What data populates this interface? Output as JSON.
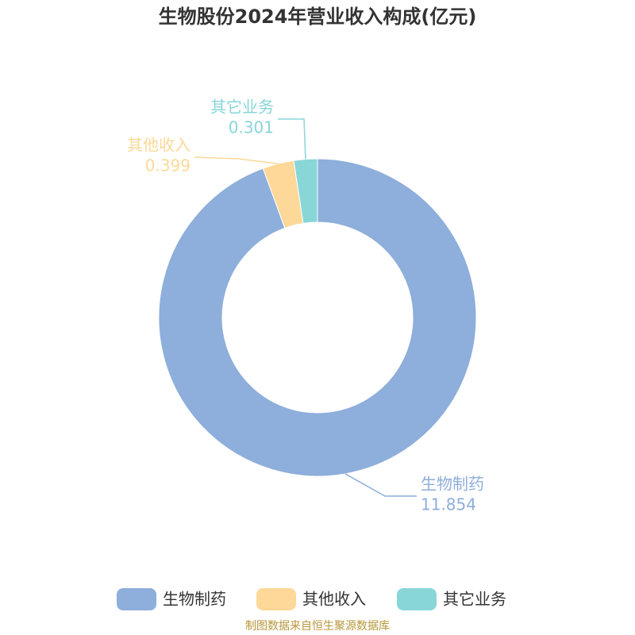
{
  "chart_data": {
    "type": "donut",
    "title": "生物股份2024年营业收入构成(亿元)",
    "categories": [
      "生物制药",
      "其他收入",
      "其它业务"
    ],
    "values": [
      11.854,
      0.399,
      0.301
    ],
    "colors": [
      "#8eaedb",
      "#fdd898",
      "#89d6d8"
    ],
    "legend": "bottom",
    "source": "制图数据来自恒生聚源数据库"
  }
}
